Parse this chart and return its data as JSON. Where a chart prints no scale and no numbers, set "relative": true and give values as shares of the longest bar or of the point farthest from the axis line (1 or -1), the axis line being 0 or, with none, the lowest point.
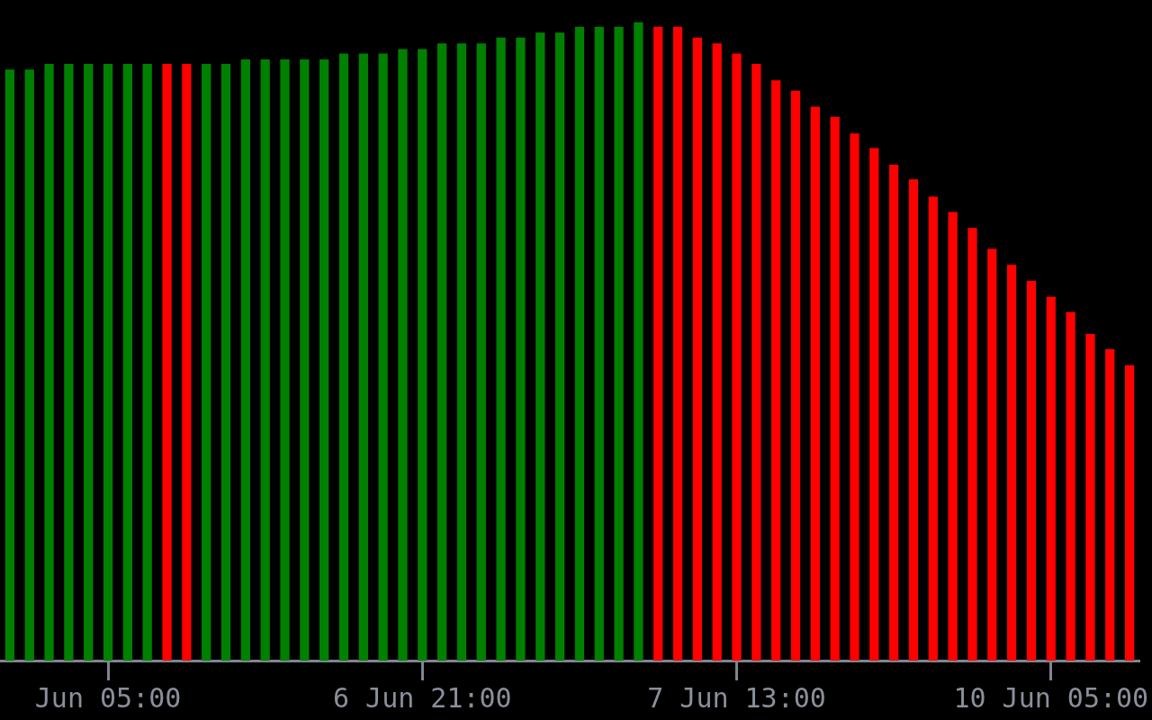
{
  "chart_data": {
    "type": "bar",
    "relative": true,
    "grid": false,
    "legend": false,
    "categories": [
      null,
      null,
      null,
      null,
      null,
      "Jun 05:00",
      null,
      null,
      null,
      null,
      null,
      null,
      null,
      null,
      null,
      null,
      null,
      null,
      null,
      null,
      null,
      "6 Jun 21:00",
      null,
      null,
      null,
      null,
      null,
      null,
      null,
      null,
      null,
      null,
      null,
      null,
      null,
      null,
      null,
      "7 Jun 13:00",
      null,
      null,
      null,
      null,
      null,
      null,
      null,
      null,
      null,
      null,
      null,
      null,
      null,
      null,
      null,
      "10 Jun 05:00",
      null,
      null,
      null,
      null
    ],
    "values": [
      0.926,
      0.926,
      0.935,
      0.935,
      0.935,
      0.935,
      0.935,
      0.935,
      0.935,
      0.935,
      0.935,
      0.935,
      0.942,
      0.942,
      0.942,
      0.942,
      0.942,
      0.951,
      0.951,
      0.951,
      0.958,
      0.958,
      0.967,
      0.967,
      0.967,
      0.976,
      0.976,
      0.984,
      0.984,
      0.993,
      0.993,
      0.993,
      1,
      0.993,
      0.993,
      0.976,
      0.967,
      0.951,
      0.935,
      0.909,
      0.893,
      0.868,
      0.852,
      0.826,
      0.803,
      0.777,
      0.754,
      0.727,
      0.703,
      0.678,
      0.645,
      0.62,
      0.595,
      0.57,
      0.546,
      0.512,
      0.488,
      0.463
    ],
    "colors": [
      "#008000",
      "#008000",
      "#008000",
      "#008000",
      "#008000",
      "#008000",
      "#008000",
      "#008000",
      "#ff0000",
      "#ff0000",
      "#008000",
      "#008000",
      "#008000",
      "#008000",
      "#008000",
      "#008000",
      "#008000",
      "#008000",
      "#008000",
      "#008000",
      "#008000",
      "#008000",
      "#008000",
      "#008000",
      "#008000",
      "#008000",
      "#008000",
      "#008000",
      "#008000",
      "#008000",
      "#008000",
      "#008000",
      "#008000",
      "#ff0000",
      "#ff0000",
      "#ff0000",
      "#ff0000",
      "#ff0000",
      "#ff0000",
      "#ff0000",
      "#ff0000",
      "#ff0000",
      "#ff0000",
      "#ff0000",
      "#ff0000",
      "#ff0000",
      "#ff0000",
      "#ff0000",
      "#ff0000",
      "#ff0000",
      "#ff0000",
      "#ff0000",
      "#ff0000",
      "#ff0000",
      "#ff0000",
      "#ff0000",
      "#ff0000",
      "#ff0000"
    ]
  }
}
